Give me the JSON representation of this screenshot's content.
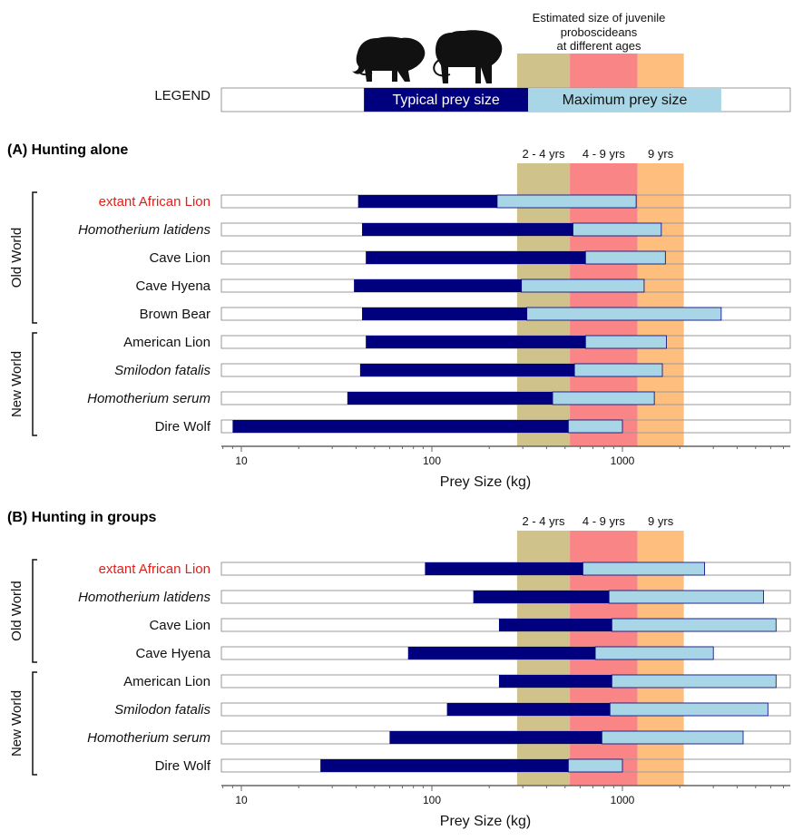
{
  "colors": {
    "typical": "#00007f",
    "maximum": "#a9d6e6",
    "age_2_4": "#cfc38b",
    "age_4_9": "#f98586",
    "age_9": "#fdbe7e",
    "extant": "#e0201b",
    "track_border": "#999999"
  },
  "age_bands": {
    "caption_lines": [
      "Estimated size of juvenile",
      "proboscideans",
      "at different ages"
    ],
    "bands": [
      {
        "label": "2 - 4 yrs",
        "from": 280,
        "to": 530
      },
      {
        "label": "4 - 9 yrs",
        "from": 530,
        "to": 1200
      },
      {
        "label": "9 yrs",
        "from": 1200,
        "to": 2100
      }
    ]
  },
  "legend": {
    "title": "LEGEND",
    "typical_label": "Typical prey size",
    "maximum_label": "Maximum prey size",
    "typical_range": [
      44,
      320
    ],
    "maximum_range": [
      320,
      3300
    ],
    "icons": [
      "mammoth-icon",
      "mastodon-icon"
    ]
  },
  "chart_data": [
    {
      "type": "bar",
      "title": "(A) Hunting alone",
      "xlabel": "Prey Size (kg)",
      "xscale": "log",
      "xlim": [
        8,
        8000
      ],
      "xticks": [
        10,
        100,
        1000
      ],
      "series": [
        {
          "name": "Typical prey size"
        },
        {
          "name": "Maximum prey size"
        }
      ],
      "groups": [
        {
          "name": "Old World",
          "start": 0,
          "end": 4
        },
        {
          "name": "New World",
          "start": 5,
          "end": 8
        }
      ],
      "rows": [
        {
          "prefix": "extant",
          "label": "African Lion",
          "extant": true,
          "italic": false,
          "typical": [
            41,
            220
          ],
          "maximum": [
            220,
            1180
          ]
        },
        {
          "prefix": "",
          "label": "Homotherium latidens",
          "italic": true,
          "typical": [
            43,
            550
          ],
          "maximum": [
            550,
            1600
          ]
        },
        {
          "prefix": "",
          "label": "Cave Lion",
          "italic": false,
          "typical": [
            45,
            640
          ],
          "maximum": [
            640,
            1680
          ]
        },
        {
          "prefix": "",
          "label": "Cave Hyena",
          "italic": false,
          "typical": [
            39,
            295
          ],
          "maximum": [
            295,
            1300
          ]
        },
        {
          "prefix": "",
          "label": "Brown Bear",
          "italic": false,
          "typical": [
            43,
            315
          ],
          "maximum": [
            315,
            3300
          ]
        },
        {
          "prefix": "",
          "label": "American Lion",
          "italic": false,
          "typical": [
            45,
            640
          ],
          "maximum": [
            640,
            1700
          ]
        },
        {
          "prefix": "",
          "label": "Smilodon fatalis",
          "italic": true,
          "typical": [
            42,
            560
          ],
          "maximum": [
            560,
            1620
          ]
        },
        {
          "prefix": "",
          "label": "Homotherium serum",
          "italic": true,
          "typical": [
            36,
            430
          ],
          "maximum": [
            430,
            1470
          ]
        },
        {
          "prefix": "",
          "label": "Dire Wolf",
          "italic": false,
          "typical": [
            9,
            520
          ],
          "maximum": [
            520,
            1000
          ]
        }
      ]
    },
    {
      "type": "bar",
      "title": "(B) Hunting in groups",
      "xlabel": "Prey Size (kg)",
      "xscale": "log",
      "xlim": [
        8,
        8000
      ],
      "xticks": [
        10,
        100,
        1000
      ],
      "series": [
        {
          "name": "Typical prey size"
        },
        {
          "name": "Maximum prey size"
        }
      ],
      "groups": [
        {
          "name": "Old World",
          "start": 0,
          "end": 3
        },
        {
          "name": "New World",
          "start": 4,
          "end": 7
        }
      ],
      "rows": [
        {
          "prefix": "extant",
          "label": "African Lion",
          "extant": true,
          "italic": false,
          "typical": [
            92,
            620
          ],
          "maximum": [
            620,
            2700
          ]
        },
        {
          "prefix": "",
          "label": "Homotherium latidens",
          "italic": true,
          "typical": [
            165,
            850
          ],
          "maximum": [
            850,
            5500
          ]
        },
        {
          "prefix": "",
          "label": "Cave Lion",
          "italic": false,
          "typical": [
            225,
            880
          ],
          "maximum": [
            880,
            6400
          ]
        },
        {
          "prefix": "",
          "label": "Cave Hyena",
          "italic": false,
          "typical": [
            75,
            720
          ],
          "maximum": [
            720,
            3000
          ]
        },
        {
          "prefix": "",
          "label": "American Lion",
          "italic": false,
          "typical": [
            225,
            880
          ],
          "maximum": [
            880,
            6400
          ]
        },
        {
          "prefix": "",
          "label": "Smilodon fatalis",
          "italic": true,
          "typical": [
            120,
            860
          ],
          "maximum": [
            860,
            5800
          ]
        },
        {
          "prefix": "",
          "label": "Homotherium serum",
          "italic": true,
          "typical": [
            60,
            780
          ],
          "maximum": [
            780,
            4300
          ]
        },
        {
          "prefix": "",
          "label": "Dire Wolf",
          "italic": false,
          "typical": [
            26,
            520
          ],
          "maximum": [
            520,
            1000
          ]
        }
      ]
    }
  ]
}
